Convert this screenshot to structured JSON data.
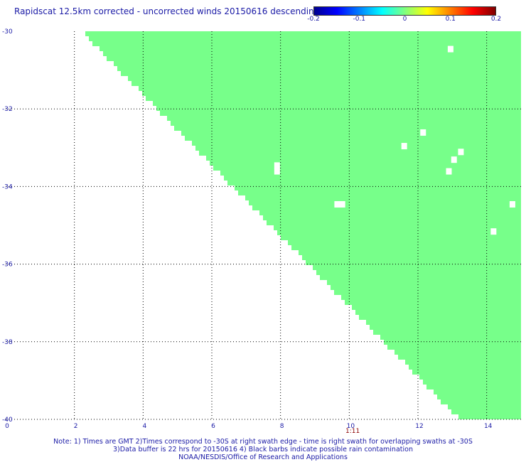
{
  "title": "Rapidscat 12.5km corrected - uncorrected winds 20150616 descending",
  "colorbar": {
    "ticks": [
      {
        "label": "-0.2",
        "value": -0.2
      },
      {
        "label": "-0.1",
        "value": -0.1
      },
      {
        "label": "0",
        "value": 0
      },
      {
        "label": "0.1",
        "value": 0.1
      },
      {
        "label": "0.2",
        "value": 0.2
      }
    ],
    "range": [
      -0.2,
      0.2
    ]
  },
  "map": {
    "lon_range": [
      0,
      15
    ],
    "lat_range": [
      -40,
      -30
    ],
    "lon_ticks": [
      {
        "label": "0",
        "value": 0
      },
      {
        "label": "2",
        "value": 2
      },
      {
        "label": "4",
        "value": 4
      },
      {
        "label": "6",
        "value": 6
      },
      {
        "label": "8",
        "value": 8
      },
      {
        "label": "10",
        "value": 10
      },
      {
        "label": "12",
        "value": 12
      },
      {
        "label": "14",
        "value": 14
      }
    ],
    "lat_ticks": [
      {
        "label": "-30",
        "value": -30
      },
      {
        "label": "-32",
        "value": -32
      },
      {
        "label": "-34",
        "value": -34
      },
      {
        "label": "-36",
        "value": -36
      },
      {
        "label": "-38",
        "value": -38
      },
      {
        "label": "-40",
        "value": -40
      }
    ],
    "swath_color": "#77ff8a",
    "swath_edge": [
      [
        2.2,
        -30
      ],
      [
        13.2,
        -40
      ]
    ],
    "gaps": [
      {
        "lon": 12.95,
        "lat": -30.45
      },
      {
        "lon": 12.15,
        "lat": -32.6
      },
      {
        "lon": 11.6,
        "lat": -32.95
      },
      {
        "lon": 13.25,
        "lat": -33.1
      },
      {
        "lon": 13.05,
        "lat": -33.3
      },
      {
        "lon": 12.9,
        "lat": -33.6
      },
      {
        "lon": 7.9,
        "lat": -33.45
      },
      {
        "lon": 7.9,
        "lat": -33.6
      },
      {
        "lon": 9.65,
        "lat": -34.45
      },
      {
        "lon": 9.8,
        "lat": -34.45
      },
      {
        "lon": 14.75,
        "lat": -34.45
      },
      {
        "lon": 14.2,
        "lat": -35.15
      }
    ]
  },
  "time_label": {
    "text": "1:11",
    "lon": 10.1
  },
  "notes": [
    "Note: 1) Times are GMT 2)Times correspond to -30S at right swath edge - time is right swath for overlapping swaths at -30S",
    "3)Data buffer is 22 hrs for 20150616 4) Black barbs indicate possible rain contamination",
    "NOAA/NESDIS/Office of Research and Applications"
  ]
}
